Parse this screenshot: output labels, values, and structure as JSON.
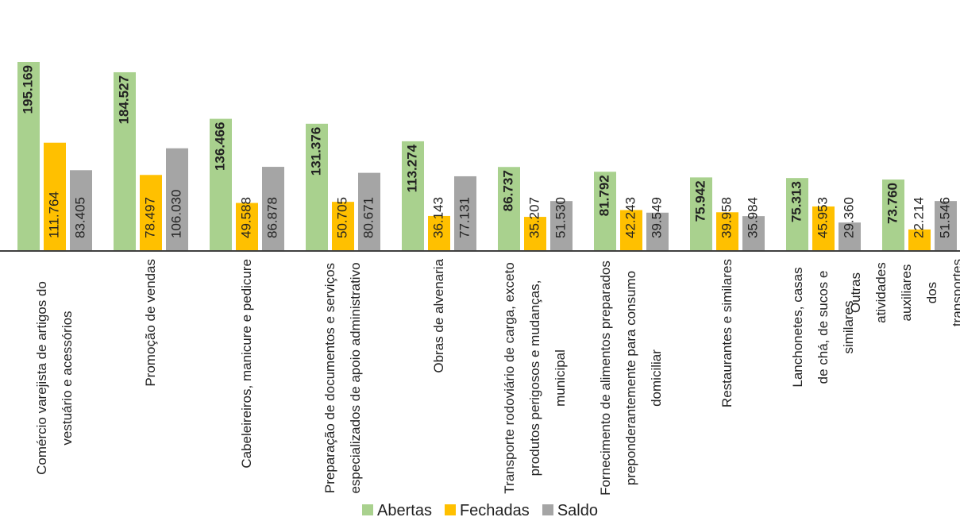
{
  "chart_data": {
    "type": "bar",
    "categories": [
      "Comércio varejista de artigos do vestuário e acessórios",
      "Promoção de vendas",
      "Cabeleireiros, manicure e pedicure",
      "Preparação de documentos e serviços especializados de apoio administrativo",
      "Obras de alvenaria",
      "Transporte rodoviário de carga, exceto produtos perigosos e mudanças, municipal",
      "Fornecimento de alimentos preparados preponderantemente para consumo domiciliar",
      "Restaurantes e similares",
      "Lanchonetes, casas de chá, de sucos e similares",
      "Outras atividades auxiliares dos transportes terrestres"
    ],
    "series": [
      {
        "name": "Abertas",
        "color": "#a9d18e",
        "values": [
          195169,
          184527,
          136466,
          131376,
          113274,
          86737,
          81792,
          75942,
          75313,
          73760
        ],
        "value_labels": [
          "195.169",
          "184.527",
          "136.466",
          "131.376",
          "113.274",
          "86.737",
          "81.792",
          "75.942",
          "75.313",
          "73.760"
        ]
      },
      {
        "name": "Fechadas",
        "color": "#ffc000",
        "values": [
          111764,
          78497,
          49588,
          50705,
          36143,
          35207,
          42243,
          39958,
          45953,
          22214
        ],
        "value_labels": [
          "111.764",
          "78.497",
          "49.588",
          "50.705",
          "36.143",
          "35.207",
          "42.243",
          "39.958",
          "45.953",
          "22.214"
        ]
      },
      {
        "name": "Saldo",
        "color": "#a5a5a5",
        "values": [
          83405,
          106030,
          86878,
          80671,
          77131,
          51530,
          39549,
          35984,
          29360,
          51546
        ],
        "value_labels": [
          "83.405",
          "106.030",
          "86.878",
          "80.671",
          "77.131",
          "51.530",
          "39.549",
          "35.984",
          "29.360",
          "51.546"
        ]
      }
    ]
  }
}
